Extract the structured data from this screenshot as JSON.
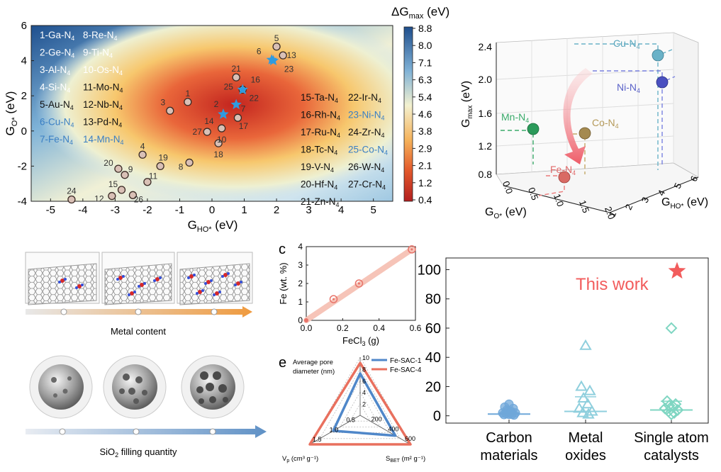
{
  "chart_data": [
    {
      "type": "heatmap",
      "colorbar": {
        "label_prefix": "ΔG",
        "label_sub": "max",
        "label_suffix": " (eV)",
        "ticks": [
          "8.8",
          "8.0",
          "7.1",
          "6.3",
          "5.4",
          "4.6",
          "3.8",
          "2.9",
          "2.1",
          "1.2",
          "0.4"
        ],
        "range": [
          0.4,
          8.8
        ]
      },
      "xlabel": {
        "main": "G",
        "sub": "HO*",
        "suffix": " (eV)"
      },
      "ylabel": {
        "main": "G",
        "sub": "O*",
        "suffix": " (eV)"
      },
      "xlim": [
        -5.6,
        5.6
      ],
      "ylim": [
        -4,
        6
      ],
      "xticks": [
        "-5",
        "-4",
        "-3",
        "-2",
        "-1",
        "0",
        "1",
        "2",
        "3",
        "4",
        "5"
      ],
      "yticks": [
        "-4",
        "-2",
        "0",
        "2",
        "4",
        "6"
      ],
      "legend_left": [
        {
          "a": "1-Ga-N",
          "b": "8-Re-N"
        },
        {
          "a": "2-Ge-N",
          "b": "9-Ti-N"
        },
        {
          "a": "3-Al-N",
          "b": "10-Os-N"
        },
        {
          "a": "4-Si-N",
          "b": "11-Mo-N"
        },
        {
          "a": "5-Au-N",
          "b": "12-Nb-N"
        },
        {
          "a": "6-Cu-N",
          "b": "13-Pd-N"
        },
        {
          "a": "7-Fe-N",
          "b": "14-Mn-N"
        }
      ],
      "legend_right": [
        {
          "a": "15-Ta-N",
          "b": "22-Ir-N"
        },
        {
          "a": "16-Rh-N",
          "b": "23-Ni-N"
        },
        {
          "a": "17-Ru-N",
          "b": "24-Zr-N"
        },
        {
          "a": "18-Tc-N",
          "b": "25-Co-N"
        },
        {
          "a": "19-V-N",
          "b": "26-W-N"
        },
        {
          "a": "20-Hf-N",
          "b": "27-Cr-N"
        },
        {
          "a": "21-Zn-N",
          "b": ""
        }
      ],
      "subscript": "4",
      "points": [
        {
          "id": "1",
          "x": -0.75,
          "y": 1.65,
          "star": false
        },
        {
          "id": "3",
          "x": -1.3,
          "y": 1.15,
          "star": false
        },
        {
          "id": "4",
          "x": -2.15,
          "y": -1.35,
          "star": false
        },
        {
          "id": "5",
          "x": 2.0,
          "y": 4.8,
          "star": false
        },
        {
          "id": "8",
          "x": -0.7,
          "y": -1.8,
          "star": false
        },
        {
          "id": "9",
          "x": -2.7,
          "y": -2.5,
          "star": false
        },
        {
          "id": "10",
          "x": 0.3,
          "y": 0.15,
          "star": false
        },
        {
          "id": "11",
          "x": -2.0,
          "y": -2.9,
          "star": false
        },
        {
          "id": "12",
          "x": -3.1,
          "y": -3.7,
          "star": false
        },
        {
          "id": "13",
          "x": 2.2,
          "y": 4.3,
          "star": false
        },
        {
          "id": "15",
          "x": -2.8,
          "y": -3.35,
          "star": false
        },
        {
          "id": "17",
          "x": 0.8,
          "y": 0.75,
          "star": false
        },
        {
          "id": "18",
          "x": 0.2,
          "y": -0.7,
          "star": false
        },
        {
          "id": "19",
          "x": -1.6,
          "y": -2.0,
          "star": false
        },
        {
          "id": "20",
          "x": -2.9,
          "y": -2.15,
          "star": false
        },
        {
          "id": "21",
          "x": 0.75,
          "y": 3.05,
          "star": false
        },
        {
          "id": "24",
          "x": -4.35,
          "y": -3.9,
          "star": false
        },
        {
          "id": "26",
          "x": -2.45,
          "y": -3.65,
          "star": false
        },
        {
          "id": "27",
          "x": -0.15,
          "y": -0.05,
          "star": false
        },
        {
          "id": "22",
          "x": 0.95,
          "y": 2.35,
          "star": false
        },
        {
          "id": "2",
          "x": 0.35,
          "y": 0.95,
          "star": true
        },
        {
          "id": "6",
          "x": 1.85,
          "y": 4.05,
          "star": true
        },
        {
          "id": "7",
          "x": 0.75,
          "y": 1.5,
          "star": true
        },
        {
          "id": "14",
          "x": 0.35,
          "y": 0.95,
          "star": true
        },
        {
          "id": "16",
          "x": 0.95,
          "y": 2.35,
          "star": true
        },
        {
          "id": "23",
          "x": 1.9,
          "y": 4.0,
          "star": true
        },
        {
          "id": "25",
          "x": 0.95,
          "y": 2.35,
          "star": true
        }
      ]
    },
    {
      "type": "scatter",
      "subtype": "3d",
      "xlabel": {
        "main": "G",
        "sub": "O*",
        "suffix": " (eV)"
      },
      "ylabel": {
        "main": "G",
        "sub": "HO*",
        "suffix": " (eV)"
      },
      "zlabel": {
        "main": "G",
        "sub": "max",
        "suffix": " (eV)"
      },
      "zticks": [
        "0.8",
        "1.2",
        "1.6",
        "2.0",
        "2.4"
      ],
      "xticks": [
        "0.0",
        "0.5",
        "1.0",
        "1.5",
        "2.0"
      ],
      "yticks": [
        "1",
        "2",
        "3",
        "4",
        "5",
        "6"
      ],
      "points": [
        {
          "label": "Cu-N",
          "color": "#5aa6bd"
        },
        {
          "label": "Ni-N",
          "color": "#5a62c8"
        },
        {
          "label": "Mn-N",
          "color": "#3aaa6a"
        },
        {
          "label": "Co-N",
          "color": "#b59a5a"
        },
        {
          "label": "Fe-N",
          "color": "#e06a6a"
        }
      ]
    },
    {
      "type": "line",
      "panel_letter": "c",
      "xlabel": "FeCl",
      "xlabel_sub": "3",
      "xlabel_suffix": " (g)",
      "ylabel": "Fe (wt. %)",
      "xlim": [
        0,
        0.6
      ],
      "ylim": [
        0,
        4
      ],
      "xticks": [
        "0.0",
        "0.2",
        "0.4",
        "0.6"
      ],
      "yticks": [
        "0",
        "1",
        "2",
        "3",
        "4"
      ],
      "x": [
        0.15,
        0.29,
        0.58
      ],
      "y": [
        1.15,
        2.0,
        3.85
      ],
      "color": "#e8746a"
    },
    {
      "type": "radar",
      "panel_letter": "e",
      "axes": [
        {
          "label_lines": [
            "Average pore",
            "diameter (nm)"
          ],
          "ticks": [
            "2",
            "4",
            "6",
            "8",
            "10"
          ],
          "max": 10
        },
        {
          "label_html": "S",
          "label_sub": "BET",
          "label_suffix": " (m² g⁻¹)",
          "ticks": [
            "200",
            "400",
            "600"
          ],
          "max": 600
        },
        {
          "label_html": "V",
          "label_sub": "p",
          "label_suffix": " (cm³ g⁻¹)",
          "ticks": [
            "0.5",
            "1.0",
            "1.5"
          ],
          "max": 1.5
        }
      ],
      "series": [
        {
          "name": "Fe-SAC-1",
          "color": "#4f87c9",
          "values": [
            7.2,
            420,
            0.8
          ]
        },
        {
          "name": "Fe-SAC-4",
          "color": "#e9705e",
          "values": [
            9.0,
            600,
            1.5
          ]
        }
      ]
    },
    {
      "type": "scatter",
      "categories": [
        [
          "Carbon",
          "materials"
        ],
        [
          "Metal",
          "oxides"
        ],
        [
          "Single atom",
          "catalysts"
        ]
      ],
      "ylim": [
        -5,
        108
      ],
      "yticks": [
        "0",
        "20",
        "40",
        "60",
        "80",
        "100"
      ],
      "annotation": "This work",
      "this_work_value": 99,
      "groups": [
        {
          "color": "#6fa7d9",
          "marker": "circle",
          "values": [
            8,
            6,
            5,
            4,
            3,
            2,
            2,
            1.5,
            1,
            1,
            0.8,
            0.5,
            3,
            2.5
          ],
          "mean": 1.2,
          "sd_high": 2.0
        },
        {
          "color": "#8fcfdd",
          "marker": "triangle",
          "values": [
            48,
            20,
            17,
            12,
            8,
            5,
            3,
            2,
            1
          ],
          "mean": 3,
          "sd_high": 13
        },
        {
          "color": "#7fd6c2",
          "marker": "diamond",
          "values": [
            60,
            10,
            8,
            7,
            6,
            5,
            4,
            3,
            2,
            1
          ],
          "mean": 4,
          "sd_high": 10
        }
      ],
      "this_work_color": "#f25c5c"
    }
  ],
  "captions": {
    "metal_content": "Metal content",
    "sio2_prefix": "SiO",
    "sio2_sub": "2",
    "sio2_suffix": " filling quantity"
  }
}
